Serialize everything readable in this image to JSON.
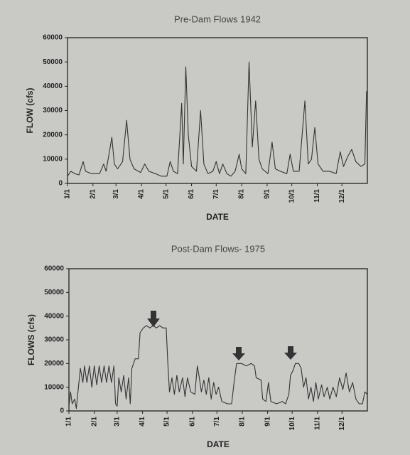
{
  "chart_data": [
    {
      "type": "line",
      "title": "Pre-Dam Flows 1942",
      "x_label": "DATE",
      "y_label": "FLOW (cfs)",
      "color": "#333333",
      "xlim": [
        1,
        366
      ],
      "ylim": [
        0,
        60000
      ],
      "yticks": [
        0,
        10000,
        20000,
        30000,
        40000,
        50000,
        60000
      ],
      "xticks": [
        {
          "value": 1,
          "label": "1/1"
        },
        {
          "value": 32,
          "label": "2/1"
        },
        {
          "value": 60,
          "label": "3/1"
        },
        {
          "value": 91,
          "label": "4/1"
        },
        {
          "value": 121,
          "label": "5/1"
        },
        {
          "value": 152,
          "label": "6/1"
        },
        {
          "value": 182,
          "label": "7/1"
        },
        {
          "value": 213,
          "label": "8/1"
        },
        {
          "value": 244,
          "label": "9/1"
        },
        {
          "value": 274,
          "label": "10/1"
        },
        {
          "value": 305,
          "label": "11/1"
        },
        {
          "value": 335,
          "label": "12/1"
        }
      ],
      "x": [
        1,
        5,
        10,
        15,
        20,
        23,
        30,
        40,
        45,
        48,
        55,
        58,
        62,
        68,
        73,
        77,
        82,
        90,
        95,
        100,
        108,
        115,
        122,
        126,
        130,
        135,
        140,
        142,
        145,
        148,
        152,
        158,
        163,
        167,
        172,
        178,
        182,
        186,
        190,
        195,
        200,
        205,
        210,
        213,
        218,
        222,
        226,
        230,
        234,
        238,
        245,
        250,
        254,
        260,
        268,
        272,
        276,
        283,
        290,
        294,
        298,
        302,
        306,
        312,
        320,
        328,
        333,
        337,
        342,
        347,
        352,
        358,
        363,
        365
      ],
      "values": [
        3000,
        5000,
        4000,
        3500,
        9000,
        5000,
        4000,
        4000,
        8000,
        5000,
        19000,
        8000,
        6000,
        9000,
        26000,
        10000,
        6000,
        4500,
        8000,
        5000,
        4000,
        3000,
        3000,
        9000,
        5000,
        4000,
        33000,
        8000,
        48000,
        20000,
        7000,
        5000,
        30000,
        8000,
        4000,
        5000,
        9000,
        4000,
        8000,
        4000,
        3000,
        5000,
        12000,
        6000,
        4000,
        50000,
        15000,
        34000,
        10000,
        6000,
        4000,
        17000,
        6000,
        5000,
        4000,
        12000,
        5000,
        5000,
        34000,
        8000,
        10000,
        23000,
        8000,
        5000,
        5000,
        4000,
        13000,
        7000,
        11000,
        14000,
        9000,
        7000,
        8000,
        38000
      ]
    },
    {
      "type": "line",
      "title": "Post-Dam Flows- 1975",
      "x_label": "DATE",
      "y_label": "FLOWS (cfs)",
      "color": "#333333",
      "xlim": [
        1,
        366
      ],
      "ylim": [
        0,
        60000
      ],
      "yticks": [
        0,
        10000,
        20000,
        30000,
        40000,
        50000,
        60000
      ],
      "xticks": [
        {
          "value": 1,
          "label": "1/1"
        },
        {
          "value": 32,
          "label": "2/1"
        },
        {
          "value": 60,
          "label": "3/1"
        },
        {
          "value": 91,
          "label": "4/1"
        },
        {
          "value": 121,
          "label": "5/1"
        },
        {
          "value": 152,
          "label": "6/1"
        },
        {
          "value": 182,
          "label": "7/1"
        },
        {
          "value": 213,
          "label": "8/1"
        },
        {
          "value": 244,
          "label": "9/1"
        },
        {
          "value": 274,
          "label": "10/1"
        },
        {
          "value": 305,
          "label": "11/1"
        },
        {
          "value": 335,
          "label": "12/1"
        }
      ],
      "x": [
        1,
        3,
        5,
        8,
        10,
        12,
        15,
        18,
        20,
        23,
        26,
        29,
        32,
        35,
        38,
        41,
        44,
        47,
        50,
        53,
        56,
        58,
        60,
        62,
        65,
        68,
        71,
        74,
        76,
        78,
        82,
        86,
        88,
        92,
        96,
        100,
        104,
        108,
        112,
        116,
        120,
        122,
        124,
        127,
        130,
        133,
        136,
        140,
        143,
        146,
        150,
        155,
        158,
        160,
        163,
        166,
        169,
        172,
        175,
        178,
        181,
        184,
        188,
        195,
        200,
        203,
        206,
        212,
        218,
        224,
        228,
        230,
        236,
        238,
        242,
        245,
        248,
        255,
        262,
        266,
        270,
        272,
        275,
        278,
        282,
        285,
        288,
        291,
        294,
        297,
        300,
        303,
        306,
        310,
        313,
        317,
        320,
        324,
        328,
        332,
        336,
        340,
        344,
        348,
        352,
        356,
        360,
        363,
        366
      ],
      "values": [
        2000,
        8000,
        3000,
        5000,
        1000,
        8000,
        18000,
        12000,
        19000,
        12000,
        19000,
        10000,
        19000,
        11000,
        19000,
        12000,
        19000,
        12000,
        19000,
        12000,
        19000,
        3000,
        2000,
        14000,
        8000,
        15000,
        5000,
        14000,
        3000,
        18000,
        22000,
        22000,
        33000,
        35000,
        36000,
        35000,
        36000,
        35000,
        36000,
        35000,
        35000,
        20000,
        8000,
        14000,
        7000,
        15000,
        8000,
        14000,
        6000,
        14000,
        8000,
        7000,
        19000,
        15000,
        8000,
        13000,
        7000,
        14000,
        5000,
        12000,
        7000,
        10000,
        4000,
        3000,
        3000,
        12000,
        20000,
        20000,
        19000,
        20000,
        19000,
        14000,
        13000,
        5000,
        4000,
        12000,
        4000,
        3000,
        4000,
        3000,
        7000,
        15000,
        17000,
        20000,
        20000,
        18000,
        10000,
        14000,
        5000,
        10000,
        4000,
        12000,
        5000,
        11000,
        6000,
        10000,
        5000,
        10000,
        6000,
        14000,
        9000,
        16000,
        8000,
        12000,
        5000,
        3000,
        3000,
        8000,
        7000
      ]
    }
  ]
}
